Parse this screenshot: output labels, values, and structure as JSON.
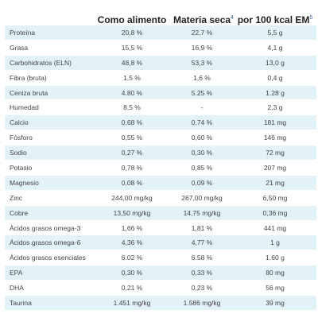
{
  "table": {
    "headers": {
      "name": "",
      "as_fed": "Como alimento",
      "dry_matter": "Materia seca",
      "dry_matter_note": "4",
      "per_100kcal": "por 100 kcal EM",
      "per_100kcal_note": "5"
    },
    "rows": [
      {
        "name": "Proteína",
        "as_fed": "20,8 %",
        "dry_matter": "22,7 %",
        "per_100kcal": "5,5 g"
      },
      {
        "name": "Grasa",
        "as_fed": "15,5 %",
        "dry_matter": "16,9 %",
        "per_100kcal": "4,1 g"
      },
      {
        "name": "Carbohidratos (ELN)",
        "as_fed": "48,8 %",
        "dry_matter": "53,3 %",
        "per_100kcal": "13,0 g"
      },
      {
        "name": "Fibra (bruta)",
        "as_fed": "1,5 %",
        "dry_matter": "1,6 %",
        "per_100kcal": "0,4 g"
      },
      {
        "name": "Ceniza bruta",
        "as_fed": "4.80 %",
        "dry_matter": "5.25 %",
        "per_100kcal": "1.28 g"
      },
      {
        "name": "Humedad",
        "as_fed": "8,5 %",
        "dry_matter": "-",
        "per_100kcal": "2,3 g"
      },
      {
        "name": "Calcio",
        "as_fed": "0,68 %",
        "dry_matter": "0,74 %",
        "per_100kcal": "181 mg"
      },
      {
        "name": "Fósforo",
        "as_fed": "0,55 %",
        "dry_matter": "0,60 %",
        "per_100kcal": "146 mg"
      },
      {
        "name": "Sodio",
        "as_fed": "0,27 %",
        "dry_matter": "0,30 %",
        "per_100kcal": "72 mg"
      },
      {
        "name": "Potasio",
        "as_fed": "0,78 %",
        "dry_matter": "0,85 %",
        "per_100kcal": "207 mg"
      },
      {
        "name": "Magnesio",
        "as_fed": "0,08 %",
        "dry_matter": "0,09 %",
        "per_100kcal": "21 mg"
      },
      {
        "name": "Zinc",
        "as_fed": "244,00 mg/kg",
        "dry_matter": "267,00 mg/kg",
        "per_100kcal": "6,50 mg"
      },
      {
        "name": "Cobre",
        "as_fed": "13,50 mg/kg",
        "dry_matter": "14,75 mg/kg",
        "per_100kcal": "0,36 mg"
      },
      {
        "name": "Ácidos grasos omega-3",
        "as_fed": "1,66 %",
        "dry_matter": "1,81 %",
        "per_100kcal": "441 mg"
      },
      {
        "name": "Ácidos grasos omega-6",
        "as_fed": "4,36 %",
        "dry_matter": "4,77 %",
        "per_100kcal": "1 g"
      },
      {
        "name": "Ácidos grasos esenciales",
        "as_fed": "6.02 %",
        "dry_matter": "6.58 %",
        "per_100kcal": "1.60 g"
      },
      {
        "name": "EPA",
        "as_fed": "0,30 %",
        "dry_matter": "0,33 %",
        "per_100kcal": "80 mg"
      },
      {
        "name": "DHA",
        "as_fed": "0,21 %",
        "dry_matter": "0,23 %",
        "per_100kcal": "56 mg"
      },
      {
        "name": "Taurina",
        "as_fed": "1.451 mg/kg",
        "dry_matter": "1.586 mg/kg",
        "per_100kcal": "39 mg"
      }
    ]
  },
  "colors": {
    "row_stripe": "#e3f2f7",
    "row_plain": "#ffffff",
    "footnote_link": "#3366aa"
  }
}
